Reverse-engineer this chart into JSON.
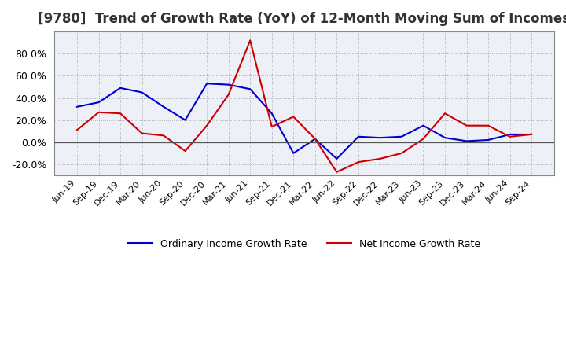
{
  "title": "[9780]  Trend of Growth Rate (YoY) of 12-Month Moving Sum of Incomes",
  "title_fontsize": 12,
  "ylim": [
    -30,
    100
  ],
  "yticks": [
    -20.0,
    0.0,
    20.0,
    40.0,
    60.0,
    80.0
  ],
  "background_color": "#ffffff",
  "plot_bg_color": "#eef0f8",
  "grid_color": "#aaaaaa",
  "x_labels": [
    "Jun-19",
    "Sep-19",
    "Dec-19",
    "Mar-20",
    "Jun-20",
    "Sep-20",
    "Dec-20",
    "Mar-21",
    "Jun-21",
    "Sep-21",
    "Dec-21",
    "Mar-22",
    "Jun-22",
    "Sep-22",
    "Dec-22",
    "Mar-23",
    "Jun-23",
    "Sep-23",
    "Dec-23",
    "Mar-24",
    "Jun-24",
    "Sep-24"
  ],
  "ordinary_income": [
    32.0,
    36.0,
    49.0,
    45.0,
    32.0,
    20.0,
    53.0,
    52.0,
    48.0,
    26.0,
    -10.0,
    3.0,
    -15.0,
    5.0,
    4.0,
    5.0,
    15.0,
    4.0,
    1.0,
    2.0,
    7.0,
    7.0
  ],
  "net_income": [
    11.0,
    27.0,
    26.0,
    8.0,
    6.0,
    -8.0,
    15.0,
    43.0,
    92.0,
    14.0,
    23.0,
    3.0,
    -27.0,
    -18.0,
    -15.0,
    -10.0,
    3.0,
    26.0,
    15.0,
    15.0,
    5.0,
    7.0
  ],
  "ordinary_color": "#0000cc",
  "net_color": "#cc0000",
  "legend_labels": [
    "Ordinary Income Growth Rate",
    "Net Income Growth Rate"
  ]
}
